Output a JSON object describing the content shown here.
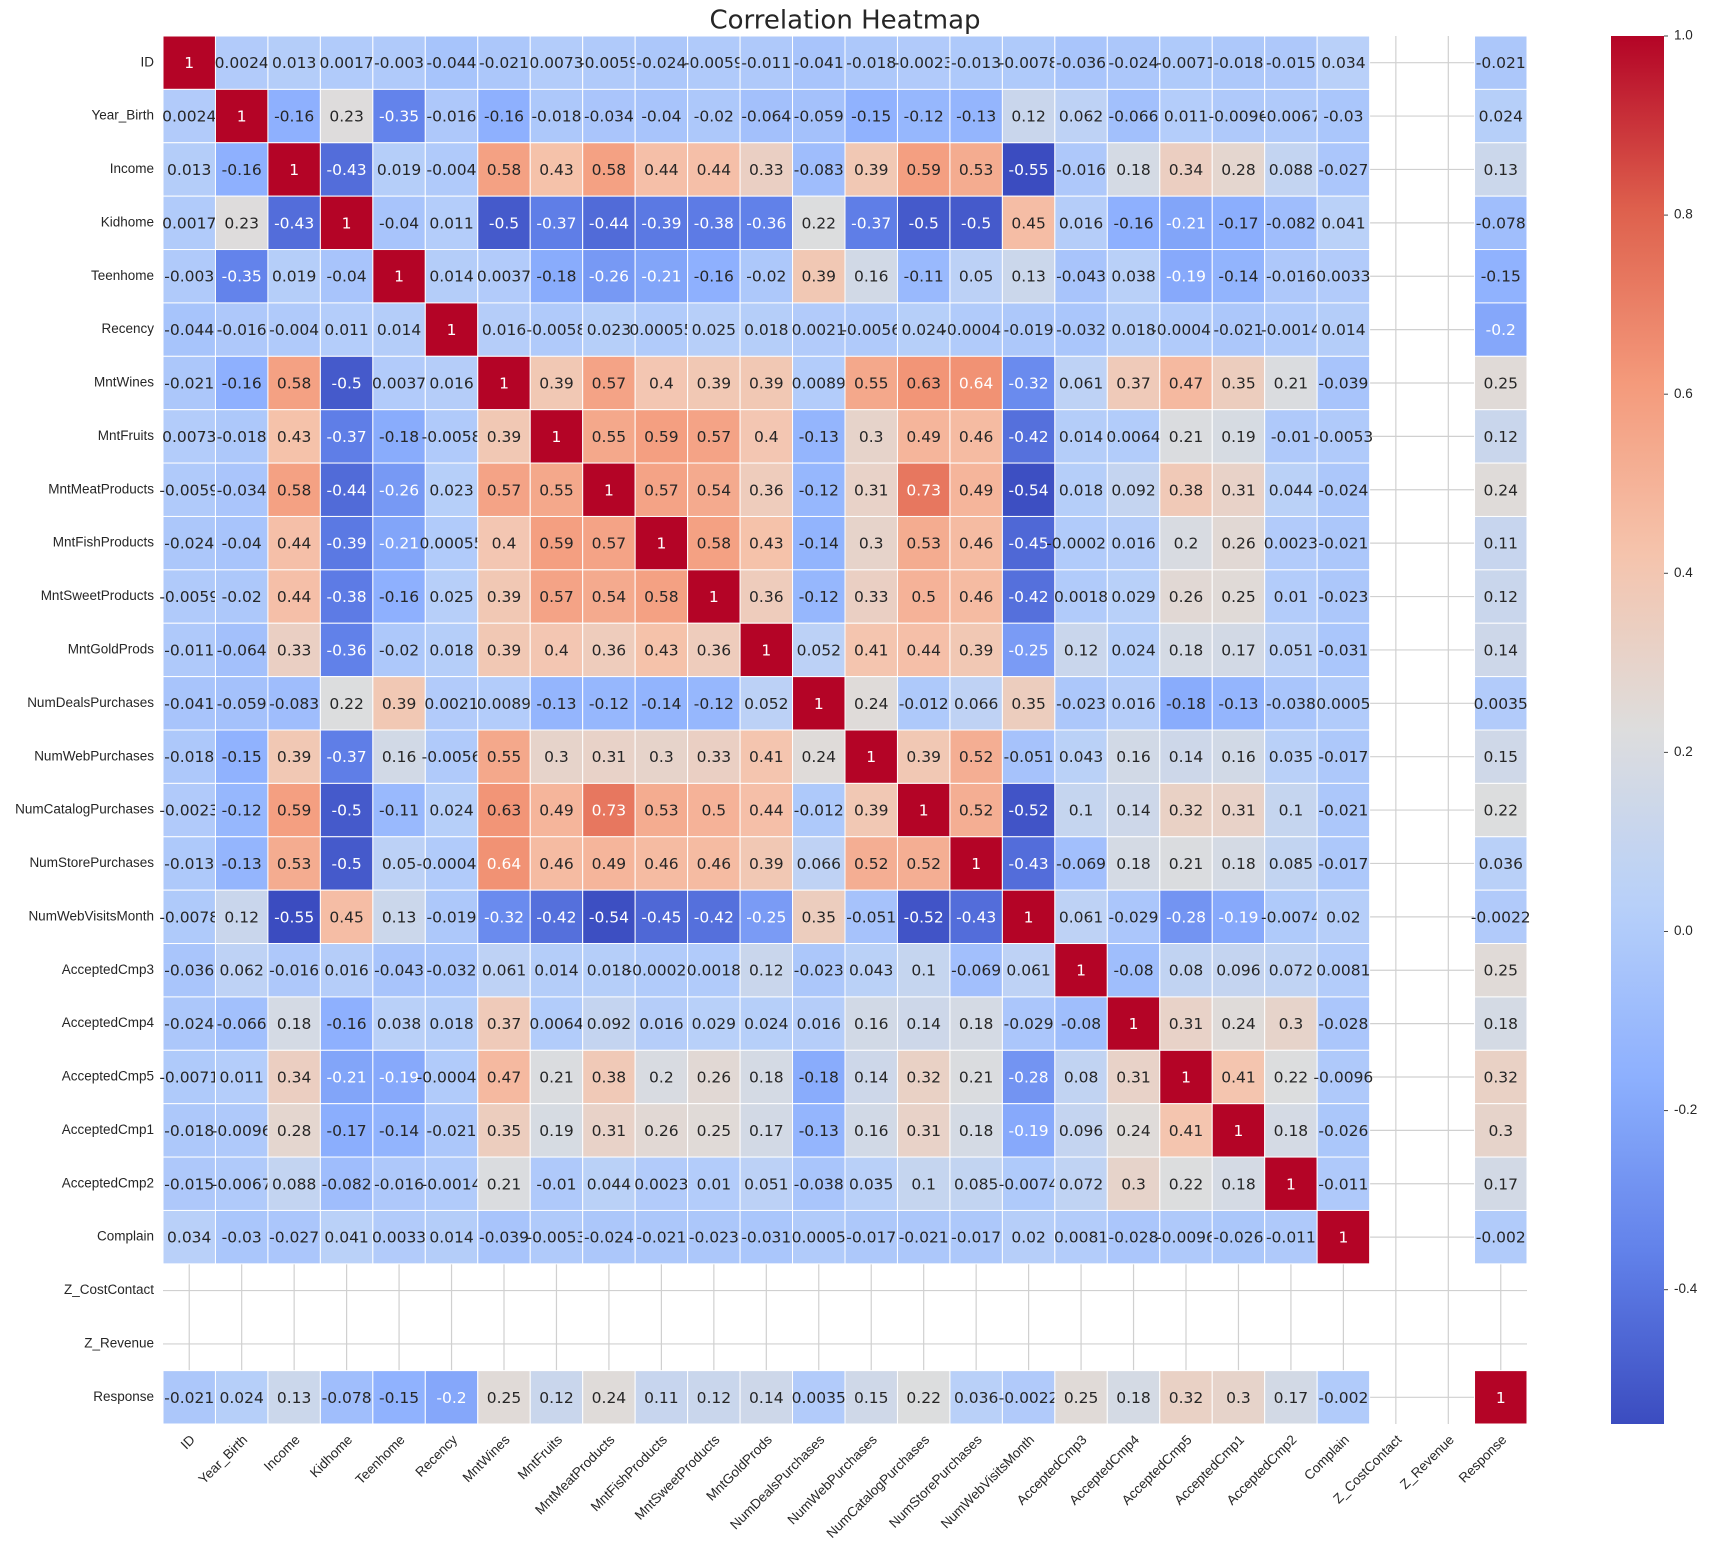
{
  "chart_data": {
    "type": "heatmap",
    "title": "Correlation Heatmap",
    "colormap": "coolwarm",
    "xcategories": [
      "ID",
      "Year_Birth",
      "Income",
      "Kidhome",
      "Teenhome",
      "Recency",
      "MntWines",
      "MntFruits",
      "MntMeatProducts",
      "MntFishProducts",
      "MntSweetProducts",
      "MntGoldProds",
      "NumDealsPurchases",
      "NumWebPurchases",
      "NumCatalogPurchases",
      "NumStorePurchases",
      "NumWebVisitsMonth",
      "AcceptedCmp3",
      "AcceptedCmp4",
      "AcceptedCmp5",
      "AcceptedCmp1",
      "AcceptedCmp2",
      "Complain",
      "Z_CostContact",
      "Z_Revenue",
      "Response"
    ],
    "ycategories": [
      "ID",
      "Year_Birth",
      "Income",
      "Kidhome",
      "Teenhome",
      "Recency",
      "MntWines",
      "MntFruits",
      "MntMeatProducts",
      "MntFishProducts",
      "MntSweetProducts",
      "MntGoldProds",
      "NumDealsPurchases",
      "NumWebPurchases",
      "NumCatalogPurchases",
      "NumStorePurchases",
      "NumWebVisitsMonth",
      "AcceptedCmp3",
      "AcceptedCmp4",
      "AcceptedCmp5",
      "AcceptedCmp1",
      "AcceptedCmp2",
      "Complain",
      "Z_CostContact",
      "Z_Revenue",
      "Response"
    ],
    "values": [
      [
        1,
        0.0024,
        0.013,
        0.0017,
        -0.003,
        -0.044,
        -0.021,
        0.0073,
        -0.0059,
        -0.024,
        -0.0059,
        -0.011,
        -0.041,
        -0.018,
        -0.0023,
        -0.013,
        -0.0078,
        -0.036,
        -0.024,
        -0.0071,
        -0.018,
        -0.015,
        0.034,
        null,
        null,
        -0.021
      ],
      [
        0.0024,
        1,
        -0.16,
        0.23,
        -0.35,
        -0.016,
        -0.16,
        -0.018,
        -0.034,
        -0.04,
        -0.02,
        -0.064,
        -0.059,
        -0.15,
        -0.12,
        -0.13,
        0.12,
        0.062,
        -0.066,
        0.011,
        -0.0096,
        -0.0067,
        -0.03,
        null,
        null,
        0.024
      ],
      [
        0.013,
        -0.16,
        1,
        -0.43,
        0.019,
        -0.004,
        0.58,
        0.43,
        0.58,
        0.44,
        0.44,
        0.33,
        -0.083,
        0.39,
        0.59,
        0.53,
        -0.55,
        -0.016,
        0.18,
        0.34,
        0.28,
        0.088,
        -0.027,
        null,
        null,
        0.13
      ],
      [
        0.0017,
        0.23,
        -0.43,
        1,
        -0.04,
        0.011,
        -0.5,
        -0.37,
        -0.44,
        -0.39,
        -0.38,
        -0.36,
        0.22,
        -0.37,
        -0.5,
        -0.5,
        0.45,
        0.016,
        -0.16,
        -0.21,
        -0.17,
        -0.082,
        0.041,
        null,
        null,
        -0.078
      ],
      [
        -0.003,
        -0.35,
        0.019,
        -0.04,
        1,
        0.014,
        0.0037,
        -0.18,
        -0.26,
        -0.21,
        -0.16,
        -0.02,
        0.39,
        0.16,
        -0.11,
        0.05,
        0.13,
        -0.043,
        0.038,
        -0.19,
        -0.14,
        -0.016,
        0.0033,
        null,
        null,
        -0.15
      ],
      [
        -0.044,
        -0.016,
        -0.004,
        0.011,
        0.014,
        1,
        0.016,
        -0.0058,
        0.023,
        0.00055,
        0.025,
        0.018,
        0.0021,
        -0.0056,
        0.024,
        -0.00043,
        -0.019,
        -0.032,
        0.018,
        -0.00048,
        -0.021,
        -0.0014,
        0.014,
        null,
        null,
        -0.2
      ],
      [
        -0.021,
        -0.16,
        0.58,
        -0.5,
        0.0037,
        0.016,
        1,
        0.39,
        0.57,
        0.4,
        0.39,
        0.39,
        0.0089,
        0.55,
        0.63,
        0.64,
        -0.32,
        0.061,
        0.37,
        0.47,
        0.35,
        0.21,
        -0.039,
        null,
        null,
        0.25
      ],
      [
        0.0073,
        -0.018,
        0.43,
        -0.37,
        -0.18,
        -0.0058,
        0.39,
        1,
        0.55,
        0.59,
        0.57,
        0.4,
        -0.13,
        0.3,
        0.49,
        0.46,
        -0.42,
        0.014,
        0.0064,
        0.21,
        0.19,
        -0.01,
        -0.0053,
        null,
        null,
        0.12
      ],
      [
        -0.0059,
        -0.034,
        0.58,
        -0.44,
        -0.26,
        0.023,
        0.57,
        0.55,
        1,
        0.57,
        0.54,
        0.36,
        -0.12,
        0.31,
        0.73,
        0.49,
        -0.54,
        0.018,
        0.092,
        0.38,
        0.31,
        0.044,
        -0.024,
        null,
        null,
        0.24
      ],
      [
        -0.024,
        -0.04,
        0.44,
        -0.39,
        -0.21,
        0.00055,
        0.4,
        0.59,
        0.57,
        1,
        0.58,
        0.43,
        -0.14,
        0.3,
        0.53,
        0.46,
        -0.45,
        -0.00022,
        0.016,
        0.2,
        0.26,
        0.0023,
        -0.021,
        null,
        null,
        0.11
      ],
      [
        -0.0059,
        -0.02,
        0.44,
        -0.38,
        -0.16,
        0.025,
        0.39,
        0.57,
        0.54,
        0.58,
        1,
        0.36,
        -0.12,
        0.33,
        0.5,
        0.46,
        -0.42,
        0.0018,
        0.029,
        0.26,
        0.25,
        0.01,
        -0.023,
        null,
        null,
        0.12
      ],
      [
        -0.011,
        -0.064,
        0.33,
        -0.36,
        -0.02,
        0.018,
        0.39,
        0.4,
        0.36,
        0.43,
        0.36,
        1,
        0.052,
        0.41,
        0.44,
        0.39,
        -0.25,
        0.12,
        0.024,
        0.18,
        0.17,
        0.051,
        -0.031,
        null,
        null,
        0.14
      ],
      [
        -0.041,
        -0.059,
        -0.083,
        0.22,
        0.39,
        0.0021,
        0.0089,
        -0.13,
        -0.12,
        -0.14,
        -0.12,
        0.052,
        1,
        0.24,
        -0.012,
        0.066,
        0.35,
        -0.023,
        0.016,
        -0.18,
        -0.13,
        -0.038,
        0.0005,
        null,
        null,
        0.0035
      ],
      [
        -0.018,
        -0.15,
        0.39,
        -0.37,
        0.16,
        -0.0056,
        0.55,
        0.3,
        0.31,
        0.3,
        0.33,
        0.41,
        0.24,
        1,
        0.39,
        0.52,
        -0.051,
        0.043,
        0.16,
        0.14,
        0.16,
        0.035,
        -0.017,
        null,
        null,
        0.15
      ],
      [
        -0.0023,
        -0.12,
        0.59,
        -0.5,
        -0.11,
        0.024,
        0.63,
        0.49,
        0.73,
        0.53,
        0.5,
        0.44,
        -0.012,
        0.39,
        1,
        0.52,
        -0.52,
        0.1,
        0.14,
        0.32,
        0.31,
        0.1,
        -0.021,
        null,
        null,
        0.22
      ],
      [
        -0.013,
        -0.13,
        0.53,
        -0.5,
        0.05,
        -0.00043,
        0.64,
        0.46,
        0.49,
        0.46,
        0.46,
        0.39,
        0.066,
        0.52,
        0.52,
        1,
        -0.43,
        -0.069,
        0.18,
        0.21,
        0.18,
        0.085,
        -0.017,
        null,
        null,
        0.036
      ],
      [
        -0.0078,
        0.12,
        -0.55,
        0.45,
        0.13,
        -0.019,
        -0.32,
        -0.42,
        -0.54,
        -0.45,
        -0.42,
        -0.25,
        0.35,
        -0.051,
        -0.52,
        -0.43,
        1,
        0.061,
        -0.029,
        -0.28,
        -0.19,
        -0.0074,
        0.02,
        null,
        null,
        -0.0022
      ],
      [
        -0.036,
        0.062,
        -0.016,
        0.016,
        -0.043,
        -0.032,
        0.061,
        0.014,
        0.018,
        -0.00022,
        0.0018,
        0.12,
        -0.023,
        0.043,
        0.1,
        -0.069,
        0.061,
        1,
        -0.08,
        0.08,
        0.096,
        0.072,
        0.0081,
        null,
        null,
        0.25
      ],
      [
        -0.024,
        -0.066,
        0.18,
        -0.16,
        0.038,
        0.018,
        0.37,
        0.0064,
        0.092,
        0.016,
        0.029,
        0.024,
        0.016,
        0.16,
        0.14,
        0.18,
        -0.029,
        -0.08,
        1,
        0.31,
        0.24,
        0.3,
        -0.028,
        null,
        null,
        0.18
      ],
      [
        -0.0071,
        0.011,
        0.34,
        -0.21,
        -0.19,
        -0.00048,
        0.47,
        0.21,
        0.38,
        0.2,
        0.26,
        0.18,
        -0.18,
        0.14,
        0.32,
        0.21,
        -0.28,
        0.08,
        0.31,
        1,
        0.41,
        0.22,
        -0.0096,
        null,
        null,
        0.32
      ],
      [
        -0.018,
        -0.0096,
        0.28,
        -0.17,
        -0.14,
        -0.021,
        0.35,
        0.19,
        0.31,
        0.26,
        0.25,
        0.17,
        -0.13,
        0.16,
        0.31,
        0.18,
        -0.19,
        0.096,
        0.24,
        0.41,
        1,
        0.18,
        -0.026,
        null,
        null,
        0.3
      ],
      [
        -0.015,
        -0.0067,
        0.088,
        -0.082,
        -0.016,
        -0.0014,
        0.21,
        -0.01,
        0.044,
        0.0023,
        0.01,
        0.051,
        -0.038,
        0.035,
        0.1,
        0.085,
        -0.0074,
        0.072,
        0.3,
        0.22,
        0.18,
        1,
        -0.011,
        null,
        null,
        0.17
      ],
      [
        0.034,
        -0.03,
        -0.027,
        0.041,
        0.0033,
        0.014,
        -0.039,
        -0.0053,
        -0.024,
        -0.021,
        -0.023,
        -0.031,
        0.0005,
        -0.017,
        -0.021,
        -0.017,
        0.02,
        0.0081,
        -0.028,
        -0.0096,
        -0.026,
        -0.011,
        1,
        null,
        null,
        -0.002
      ],
      [
        null,
        null,
        null,
        null,
        null,
        null,
        null,
        null,
        null,
        null,
        null,
        null,
        null,
        null,
        null,
        null,
        null,
        null,
        null,
        null,
        null,
        null,
        null,
        null,
        null,
        null
      ],
      [
        null,
        null,
        null,
        null,
        null,
        null,
        null,
        null,
        null,
        null,
        null,
        null,
        null,
        null,
        null,
        null,
        null,
        null,
        null,
        null,
        null,
        null,
        null,
        null,
        null,
        null
      ],
      [
        -0.021,
        0.024,
        0.13,
        -0.078,
        -0.15,
        -0.2,
        0.25,
        0.12,
        0.24,
        0.11,
        0.12,
        0.14,
        0.0035,
        0.15,
        0.22,
        0.036,
        -0.0022,
        0.25,
        0.18,
        0.32,
        0.3,
        0.17,
        -0.002,
        null,
        null,
        1
      ]
    ],
    "colorbar_lim": [
      -0.55,
      1
    ],
    "colorbar_ticks": [
      -0.4,
      -0.2,
      {
        "value": 0,
        "label": "0.0"
      },
      0.2,
      0.4,
      0.6,
      0.8,
      {
        "value": 1,
        "label": "1.0"
      }
    ]
  }
}
